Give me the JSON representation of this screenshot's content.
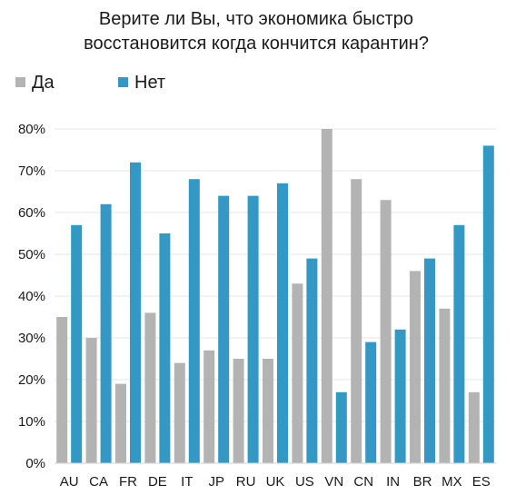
{
  "chart_data": {
    "type": "bar",
    "title_lines": [
      "Верите ли Вы, что экономика быстро",
      "восстановится когда кончится карантин?"
    ],
    "xlabel": "",
    "ylabel": "",
    "categories": [
      "AU",
      "CA",
      "FR",
      "DE",
      "IT",
      "JP",
      "RU",
      "UK",
      "US",
      "VN",
      "CN",
      "IN",
      "BR",
      "MX",
      "ES"
    ],
    "series": [
      {
        "name": "Да",
        "color": "#b3b3b3",
        "values": [
          35,
          30,
          19,
          36,
          24,
          27,
          25,
          25,
          43,
          80,
          68,
          63,
          46,
          37,
          17
        ]
      },
      {
        "name": "Нет",
        "color": "#3399c4",
        "values": [
          57,
          62,
          72,
          55,
          68,
          64,
          64,
          67,
          49,
          17,
          29,
          32,
          49,
          57,
          76
        ]
      }
    ],
    "ylim": [
      0,
      80
    ],
    "yticks": [
      0,
      10,
      20,
      30,
      40,
      50,
      60,
      70,
      80
    ],
    "ytick_labels": [
      "0%",
      "10%",
      "20%",
      "30%",
      "40%",
      "50%",
      "60%",
      "70%",
      "80%"
    ],
    "grid": true,
    "legend_position": "top-left"
  }
}
